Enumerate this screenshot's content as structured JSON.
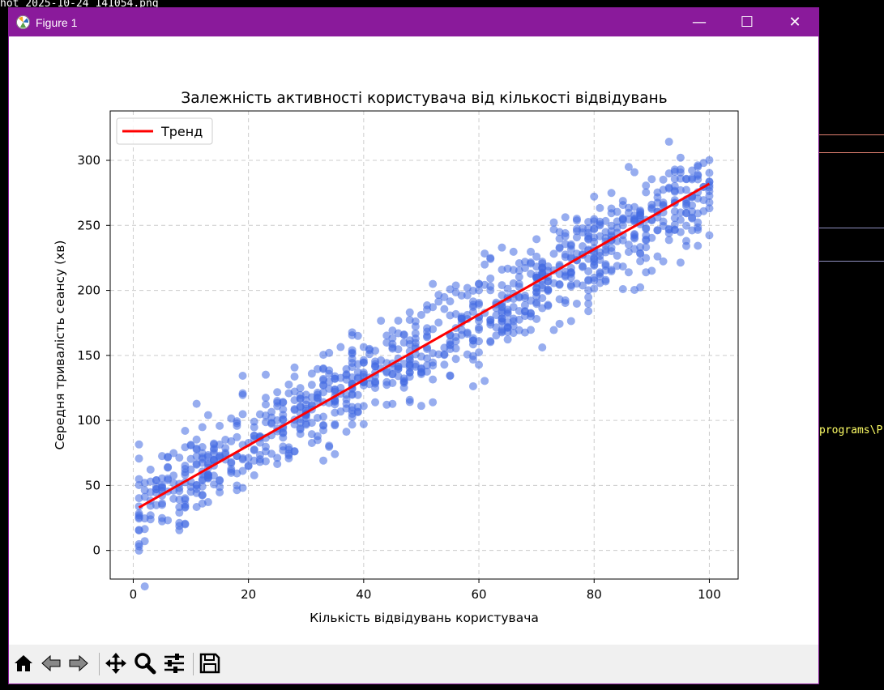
{
  "background": {
    "lines": [
      {
        "text": "hot 2025-10-24 141054.png",
        "color": "#ffffff"
      },
      {
        "text": "programs\\P",
        "color": "#ffff66"
      }
    ]
  },
  "window": {
    "title": "Figure 1",
    "minimize_glyph": "—",
    "maximize_glyph": "☐",
    "close_glyph": "✕",
    "accent": "#8a1a9b"
  },
  "toolbar": {
    "tools": [
      {
        "name": "home-icon"
      },
      {
        "name": "back-arrow-icon"
      },
      {
        "name": "forward-arrow-icon"
      },
      {
        "name": "pan-icon"
      },
      {
        "name": "zoom-icon"
      },
      {
        "name": "configure-subplots-icon"
      },
      {
        "name": "save-icon"
      }
    ]
  },
  "chart_data": {
    "type": "scatter",
    "title": "Залежність активності користувача від кількості відвідувань",
    "xlabel": "Кількість відвідувань користувача",
    "ylabel": "Середня тривалість сеансу (хв)",
    "xlim": [
      -4,
      105
    ],
    "ylim": [
      -22,
      338
    ],
    "xticks": [
      0,
      20,
      40,
      60,
      80,
      100
    ],
    "yticks": [
      0,
      50,
      100,
      150,
      200,
      250,
      300
    ],
    "grid": true,
    "legend": {
      "placement": "top-left",
      "entries": [
        "Тренд"
      ]
    },
    "point_color": "#4169e1",
    "trend_color": "#ff0000",
    "points": {
      "count": 1000,
      "x_range": [
        1,
        100
      ],
      "description_fn": "y ≈ 2.5x + 30 with noise σ≈18"
    },
    "trend": {
      "name": "Тренд",
      "x": [
        1,
        100
      ],
      "y": [
        33,
        282
      ]
    }
  }
}
